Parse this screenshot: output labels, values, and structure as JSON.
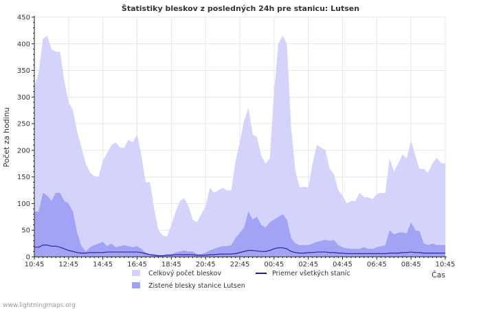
{
  "chart_data": {
    "type": "area",
    "title": "Štatistiky bleskov z posledných 24h pre stanicu: Lutsen",
    "ylabel": "Počet za hodinu",
    "xlabel": "Čas",
    "ylim": [
      0,
      450
    ],
    "yticks": [
      0,
      50,
      100,
      150,
      200,
      250,
      300,
      350,
      400,
      450
    ],
    "xlim": [
      0,
      96
    ],
    "xticks": [
      {
        "pos": 0,
        "label": "10:45"
      },
      {
        "pos": 8,
        "label": "12:45"
      },
      {
        "pos": 16,
        "label": "14:45"
      },
      {
        "pos": 24,
        "label": "16:45"
      },
      {
        "pos": 32,
        "label": "18:45"
      },
      {
        "pos": 40,
        "label": "20:45"
      },
      {
        "pos": 48,
        "label": "22:45"
      },
      {
        "pos": 56,
        "label": "00:45"
      },
      {
        "pos": 64,
        "label": "02:45"
      },
      {
        "pos": 72,
        "label": "04:45"
      },
      {
        "pos": 80,
        "label": "06:45"
      },
      {
        "pos": 88,
        "label": "08:45"
      },
      {
        "pos": 96,
        "label": "10:45"
      }
    ],
    "series": [
      {
        "name": "Celkový počet bleskov",
        "style": "area",
        "color": "#d3d3fb",
        "values": [
          320,
          345,
          410,
          415,
          390,
          385,
          385,
          330,
          290,
          275,
          235,
          205,
          175,
          158,
          152,
          150,
          180,
          195,
          210,
          215,
          205,
          205,
          220,
          215,
          230,
          190,
          140,
          140,
          90,
          50,
          40,
          38,
          60,
          85,
          105,
          110,
          95,
          70,
          65,
          80,
          95,
          130,
          120,
          125,
          130,
          125,
          125,
          180,
          215,
          255,
          280,
          230,
          225,
          190,
          175,
          185,
          310,
          400,
          415,
          400,
          240,
          160,
          130,
          132,
          130,
          175,
          210,
          205,
          200,
          165,
          155,
          125,
          115,
          100,
          105,
          105,
          120,
          112,
          112,
          108,
          118,
          120,
          120,
          185,
          160,
          175,
          192,
          185,
          218,
          190,
          165,
          165,
          158,
          175,
          186,
          176,
          175
        ]
      },
      {
        "name": "Zistené blesky stanice Lutsen",
        "style": "area",
        "color": "#a3a3f5",
        "values": [
          85,
          85,
          120,
          115,
          105,
          120,
          120,
          105,
          100,
          85,
          45,
          20,
          10,
          18,
          22,
          25,
          28,
          20,
          25,
          18,
          20,
          22,
          20,
          18,
          20,
          15,
          8,
          5,
          5,
          3,
          3,
          5,
          5,
          8,
          10,
          12,
          10,
          10,
          5,
          5,
          8,
          12,
          15,
          18,
          20,
          20,
          22,
          35,
          45,
          55,
          85,
          70,
          75,
          60,
          55,
          65,
          70,
          75,
          80,
          70,
          35,
          25,
          22,
          22,
          22,
          25,
          28,
          30,
          32,
          30,
          32,
          22,
          18,
          16,
          15,
          15,
          15,
          18,
          15,
          15,
          18,
          20,
          22,
          50,
          42,
          45,
          46,
          44,
          65,
          50,
          48,
          25,
          22,
          25,
          22,
          22,
          22
        ]
      },
      {
        "name": "Priemer všetkých staníc",
        "style": "line",
        "color": "#1a1a9e",
        "values": [
          18,
          18,
          22,
          22,
          20,
          20,
          18,
          15,
          12,
          10,
          8,
          7,
          7,
          8,
          8,
          8,
          8,
          9,
          9,
          9,
          9,
          9,
          9,
          9,
          9,
          8,
          6,
          4,
          3,
          2,
          2,
          3,
          3,
          4,
          4,
          4,
          4,
          4,
          3,
          3,
          3,
          4,
          4,
          5,
          5,
          5,
          5,
          6,
          8,
          10,
          12,
          12,
          11,
          10,
          10,
          12,
          15,
          17,
          17,
          15,
          10,
          8,
          7,
          7,
          8,
          8,
          9,
          9,
          9,
          8,
          8,
          7,
          7,
          6,
          6,
          6,
          6,
          6,
          6,
          6,
          6,
          6,
          6,
          7,
          7,
          7,
          8,
          8,
          9,
          8,
          8,
          7,
          7,
          7,
          7,
          7,
          7
        ]
      }
    ],
    "legend": [
      {
        "label": "Celkový počet bleskov",
        "swatch": "area",
        "color": "#d3d3fb"
      },
      {
        "label": "Priemer všetkých staníc",
        "swatch": "line",
        "color": "#1a1a9e"
      },
      {
        "label": "Zistené blesky stanice Lutsen",
        "swatch": "area",
        "color": "#a3a3f5"
      }
    ],
    "grid": true
  },
  "footer": {
    "credit": "www.lightningmaps.org"
  }
}
